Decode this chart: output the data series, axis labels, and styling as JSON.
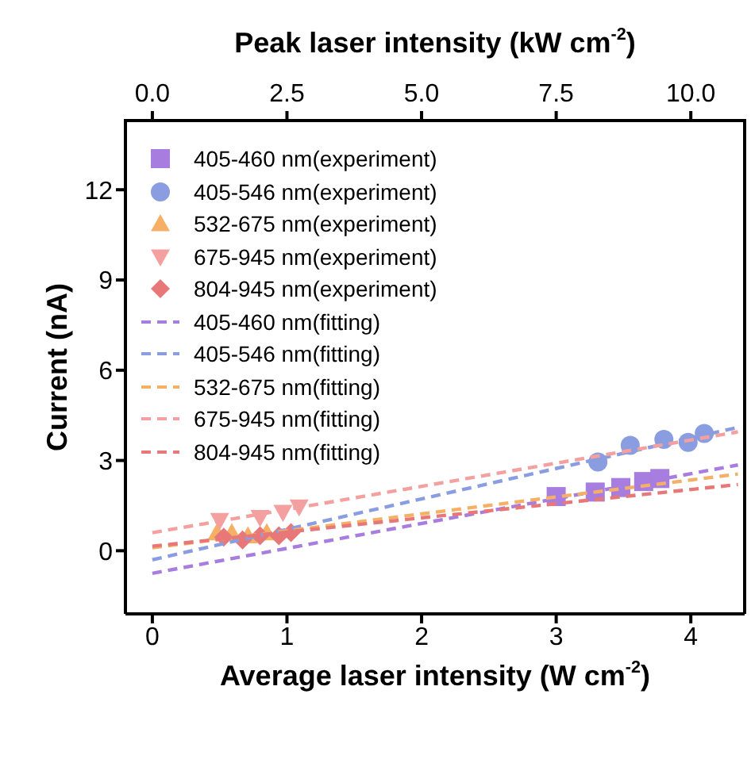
{
  "chart_data": {
    "type": "scatter",
    "xlabel": "Average laser intensity (W cm$^{-2}$)",
    "x2label": "Peak laser intensity (kW cm$^{-2}$)",
    "ylabel": "Current (nA)",
    "xlim": [
      -0.2,
      4.4
    ],
    "xticks": [
      0,
      1,
      2,
      3,
      4
    ],
    "x2lim": [
      -0.5,
      11
    ],
    "x2ticks": [
      {
        "value": 0,
        "label": "0.0"
      },
      2.5,
      {
        "value": 5,
        "label": "5.0"
      },
      7.5,
      {
        "value": 10,
        "label": "10.0"
      }
    ],
    "ylim": [
      -2.1,
      14.3
    ],
    "yticks": [
      0,
      3,
      6,
      9,
      12
    ],
    "legend": "top left",
    "series": [
      {
        "name": "405-460 nm(experiment)",
        "type": "scatter",
        "marker": "square",
        "color": "#a77de0",
        "x": [
          3.0,
          3.29,
          3.48,
          3.65,
          3.77
        ],
        "values": [
          1.8,
          1.95,
          2.1,
          2.3,
          2.4
        ]
      },
      {
        "name": "405-546 nm(experiment)",
        "type": "scatter",
        "marker": "circle",
        "color": "#8a9de0",
        "x": [
          3.31,
          3.55,
          3.8,
          3.98,
          4.1
        ],
        "values": [
          2.95,
          3.5,
          3.7,
          3.6,
          3.9
        ]
      },
      {
        "name": "532-675 nm(experiment)",
        "type": "scatter",
        "marker": "triangle",
        "color": "#f5b066",
        "x": [
          0.48,
          0.59,
          0.71,
          0.85
        ],
        "values": [
          0.6,
          0.6,
          0.5,
          0.6
        ]
      },
      {
        "name": "675-945 nm(experiment)",
        "type": "scatter",
        "marker": "triangle-down",
        "color": "#f5a0a0",
        "x": [
          0.5,
          0.8,
          0.97,
          1.09
        ],
        "values": [
          1.0,
          1.1,
          1.27,
          1.45
        ]
      },
      {
        "name": "804-945 nm(experiment)",
        "type": "scatter",
        "marker": "diamond",
        "color": "#e87878",
        "x": [
          0.53,
          0.67,
          0.8,
          0.94,
          1.03
        ],
        "values": [
          0.45,
          0.36,
          0.5,
          0.5,
          0.6
        ]
      },
      {
        "name": "405-460 nm(fitting)",
        "type": "line",
        "line_style": "dashed",
        "marker": "none",
        "color": "#a77de0",
        "x": [
          0,
          4.35
        ],
        "values": [
          -0.75,
          2.85
        ]
      },
      {
        "name": "405-546 nm(fitting)",
        "type": "line",
        "line_style": "dashed",
        "marker": "none",
        "color": "#8a9de0",
        "x": [
          0,
          4.35
        ],
        "values": [
          -0.3,
          4.1
        ]
      },
      {
        "name": "532-675 nm(fitting)",
        "type": "line",
        "line_style": "dashed",
        "marker": "none",
        "color": "#f5b066",
        "x": [
          0,
          4.35
        ],
        "values": [
          0.1,
          2.55
        ]
      },
      {
        "name": "675-945 nm(fitting)",
        "type": "line",
        "line_style": "dashed",
        "marker": "none",
        "color": "#f5a0a0",
        "x": [
          0,
          4.35
        ],
        "values": [
          0.6,
          3.95
        ]
      },
      {
        "name": "804-945 nm(fitting)",
        "type": "line",
        "line_style": "dashed",
        "marker": "none",
        "color": "#e87878",
        "x": [
          0,
          4.35
        ],
        "values": [
          0.15,
          2.2
        ]
      }
    ]
  }
}
